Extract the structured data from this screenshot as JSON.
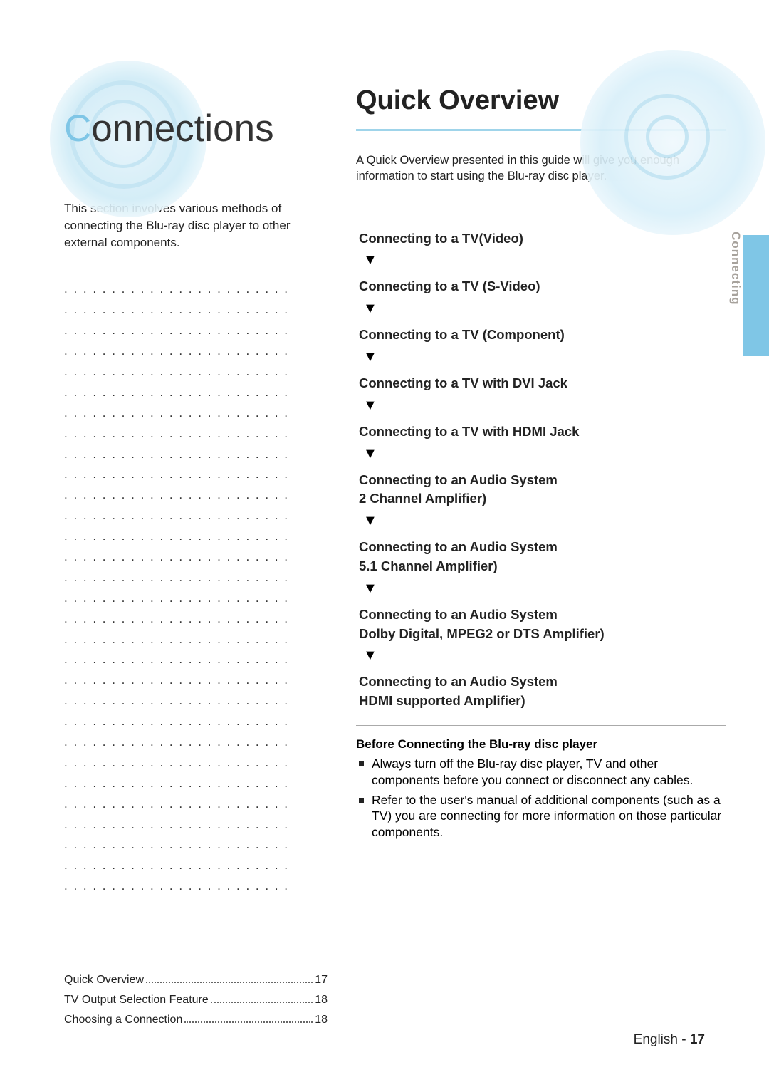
{
  "chapter": {
    "title_first_letter": "C",
    "title_rest": "onnections",
    "intro": "This section involves various methods of connecting the Blu-ray disc player to other external components.",
    "dots_lines": 30
  },
  "toc": {
    "items": [
      {
        "label": "Quick Overview",
        "page": "17"
      },
      {
        "label": "TV Output Selection Feature",
        "page": "18"
      },
      {
        "label": "Choosing a Connection",
        "page": "18"
      }
    ]
  },
  "section": {
    "title": "Quick Overview",
    "desc": "A Quick Overview presented in this guide will give you enough information to start using the Blu-ray disc player.",
    "flow": [
      "Connecting to a TV(Video)",
      "Connecting to a TV (S-Video)",
      "Connecting to a TV (Component)",
      "Connecting to a TV with DVI Jack",
      "Connecting to a TV with HDMI Jack",
      "Connecting to an Audio System\n2 Channel Amplifier)",
      "Connecting to an Audio System\n5.1 Channel Amplifier)",
      "Connecting to an Audio System\nDolby Digital, MPEG2 or DTS Amplifier)",
      "Connecting to an Audio System\nHDMI supported Amplifier)"
    ],
    "before_title": "Before Connecting the Blu-ray disc player",
    "bullets": [
      "Always turn off the Blu-ray disc player, TV and other components before you connect or disconnect any cables.",
      "Refer to the user's manual of additional components (such as a TV) you are connecting for more information on those particular components."
    ]
  },
  "side_tab": "Connecting",
  "footer": {
    "lang": "English",
    "sep": " - ",
    "page": "17"
  },
  "colors": {
    "accent": "#7fc6e6",
    "disc_light": "#d8eff9",
    "text": "#222222",
    "rule": "#aaaaaa"
  },
  "typography": {
    "chapter_title_fontsize": 53,
    "section_title_fontsize": 38,
    "body_fontsize": 17,
    "flow_item_fontsize": 18.5,
    "flow_item_weight": "bold"
  }
}
